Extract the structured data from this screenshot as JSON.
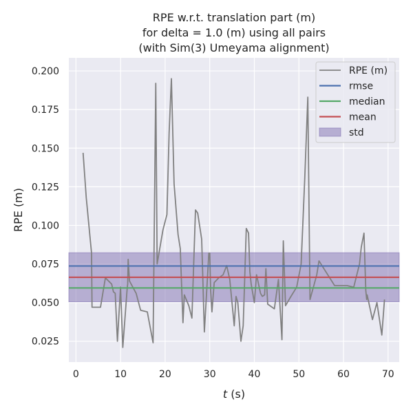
{
  "chart_data": {
    "type": "line",
    "title_lines": [
      "RPE w.r.t. translation part (m)",
      "for delta = 1.0 (m) using all pairs",
      "(with Sim(3) Umeyama alignment)"
    ],
    "xlabel_italic": "t",
    "xlabel_rest": " (s)",
    "ylabel": "RPE (m)",
    "xlim": [
      -1.6,
      72.5
    ],
    "ylim": [
      0.0115,
      0.2085
    ],
    "xticks": [
      0,
      10,
      20,
      30,
      40,
      50,
      60,
      70
    ],
    "xtick_labels": [
      "0",
      "10",
      "20",
      "30",
      "40",
      "50",
      "60",
      "70"
    ],
    "yticks": [
      0.025,
      0.05,
      0.075,
      0.1,
      0.125,
      0.15,
      0.175,
      0.2
    ],
    "ytick_labels": [
      "0.025",
      "0.050",
      "0.075",
      "0.100",
      "0.125",
      "0.150",
      "0.175",
      "0.200"
    ],
    "grid": true,
    "legend_position": "top-right",
    "series": [
      {
        "name": "RPE (m)",
        "color": "#808080",
        "x": [
          1.6,
          2.3,
          3.5,
          3.6,
          5.5,
          6.6,
          8.0,
          8.4,
          8.8,
          9.3,
          10.0,
          10.5,
          11.5,
          11.6,
          11.7,
          12.0,
          13.5,
          14.5,
          16.0,
          17.3,
          17.9,
          18.2,
          19.5,
          20.4,
          20.9,
          21.4,
          22.0,
          22.9,
          23.4,
          24.0,
          24.3,
          25.3,
          26.0,
          26.8,
          27.3,
          28.2,
          28.8,
          29.8,
          30.0,
          30.2,
          30.5,
          31.0,
          32.0,
          33.0,
          33.8,
          34.5,
          35.5,
          35.9,
          36.3,
          37.0,
          37.5,
          38.2,
          38.7,
          39.0,
          39.3,
          40.0,
          40.5,
          41.4,
          41.8,
          42.3,
          42.6,
          43.0,
          44.5,
          45.4,
          46.2,
          46.5,
          47.0,
          48.0,
          49.5,
          50.5,
          51.3,
          52.0,
          52.5,
          54.0,
          54.5,
          58.0,
          60.8,
          62.3,
          63.6,
          64.0,
          64.6,
          65.0,
          65.2,
          65.3,
          66.5,
          67.5,
          68.6,
          69.2
        ],
        "y": [
          0.147,
          0.118,
          0.082,
          0.047,
          0.047,
          0.066,
          0.062,
          0.057,
          0.056,
          0.025,
          0.06,
          0.021,
          0.06,
          0.062,
          0.078,
          0.064,
          0.056,
          0.045,
          0.044,
          0.024,
          0.192,
          0.075,
          0.097,
          0.107,
          0.16,
          0.195,
          0.127,
          0.094,
          0.085,
          0.037,
          0.055,
          0.048,
          0.04,
          0.11,
          0.108,
          0.091,
          0.031,
          0.082,
          0.082,
          0.058,
          0.044,
          0.063,
          0.066,
          0.068,
          0.074,
          0.065,
          0.035,
          0.054,
          0.05,
          0.025,
          0.035,
          0.098,
          0.095,
          0.07,
          0.062,
          0.05,
          0.068,
          0.056,
          0.054,
          0.055,
          0.072,
          0.049,
          0.046,
          0.065,
          0.026,
          0.09,
          0.048,
          0.053,
          0.06,
          0.075,
          0.13,
          0.183,
          0.052,
          0.068,
          0.077,
          0.061,
          0.061,
          0.06,
          0.075,
          0.086,
          0.095,
          0.058,
          0.052,
          0.055,
          0.039,
          0.05,
          0.029,
          0.052
        ]
      },
      {
        "name": "rmse",
        "color": "#4c72b0",
        "value": 0.0737
      },
      {
        "name": "median",
        "color": "#55a868",
        "value": 0.0595
      },
      {
        "name": "mean",
        "color": "#c44e52",
        "value": 0.0664
      },
      {
        "name": "std",
        "color": "#8172b2",
        "range": [
          0.0505,
          0.0823
        ]
      }
    ],
    "colors": {
      "plot_background": "#eaeaf2",
      "grid": "#ffffff",
      "std_fill_opacity": 0.5
    }
  }
}
